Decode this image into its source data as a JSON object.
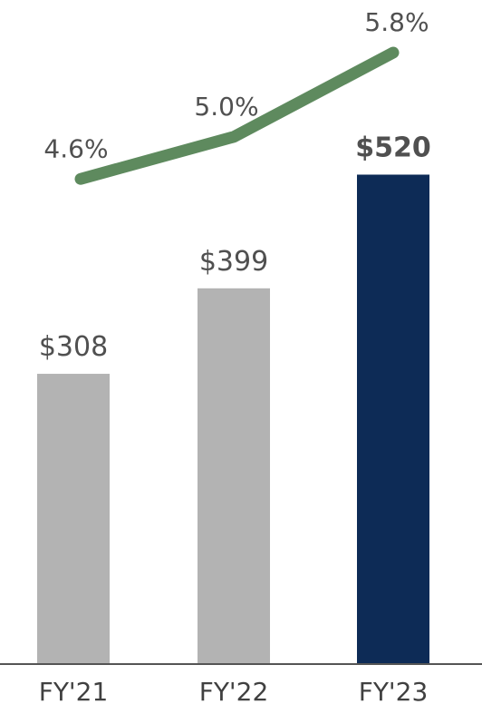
{
  "chart_data": {
    "type": "bar",
    "categories": [
      "FY'21",
      "FY'22",
      "FY'23"
    ],
    "series": [
      {
        "kind": "bar",
        "values": [
          308,
          399,
          520
        ],
        "labels": [
          "$308",
          "$399",
          "$520"
        ],
        "colors": [
          "#b3b3b3",
          "#b3b3b3",
          "#0d2b56"
        ],
        "highlight_index": 2
      },
      {
        "kind": "line",
        "values": [
          4.6,
          5.0,
          5.8
        ],
        "labels": [
          "4.6%",
          "5.0%",
          "5.8%"
        ],
        "color": "#5e8a5e"
      }
    ],
    "bar_ylim": [
      0,
      590
    ],
    "line_ylim": [
      0,
      6.3
    ],
    "grid": false,
    "legend": "none",
    "axis_color": "#555555"
  }
}
